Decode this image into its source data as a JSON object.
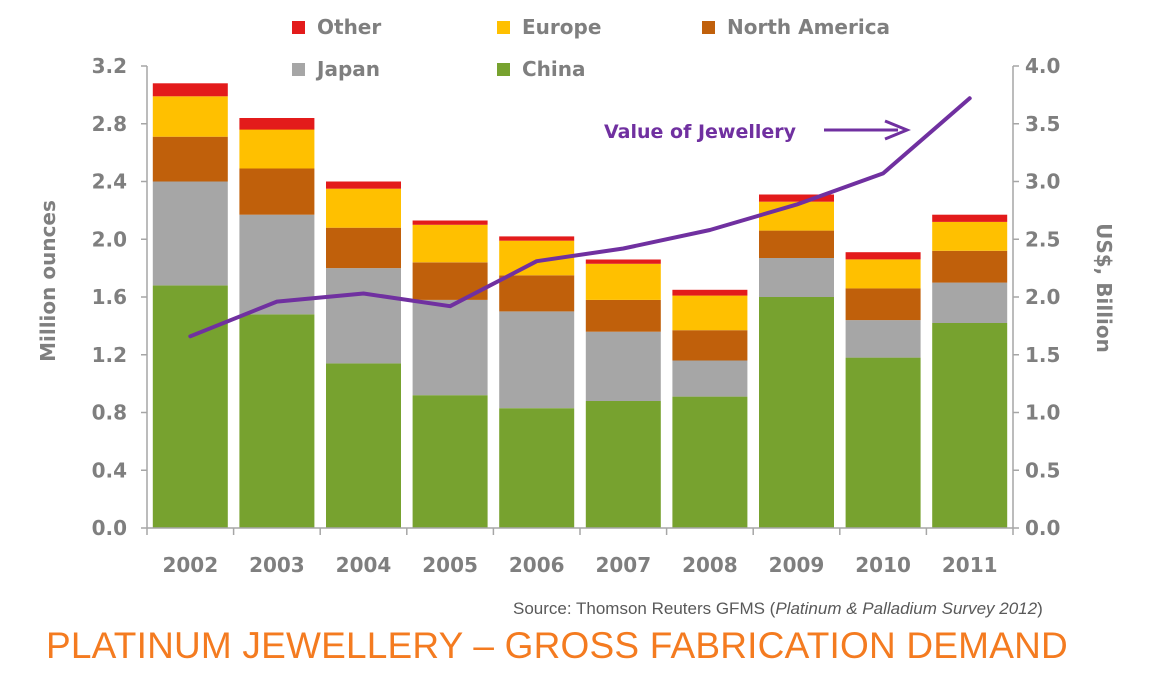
{
  "chart_data": {
    "type": "bar",
    "stacked": true,
    "title": "PLATINUM JEWELLERY – GROSS FABRICATION DEMAND",
    "categories": [
      "2002",
      "2003",
      "2004",
      "2005",
      "2006",
      "2007",
      "2008",
      "2009",
      "2010",
      "2011"
    ],
    "series": [
      {
        "name": "China",
        "color": "#77a22f",
        "values": [
          1.68,
          1.48,
          1.14,
          0.92,
          0.83,
          0.88,
          0.91,
          1.6,
          1.18,
          1.42
        ]
      },
      {
        "name": "Japan",
        "color": "#a6a6a6",
        "values": [
          0.72,
          0.69,
          0.66,
          0.66,
          0.67,
          0.48,
          0.25,
          0.27,
          0.26,
          0.28
        ]
      },
      {
        "name": "North America",
        "color": "#c0600b",
        "values": [
          0.31,
          0.32,
          0.28,
          0.26,
          0.25,
          0.22,
          0.21,
          0.19,
          0.22,
          0.22
        ]
      },
      {
        "name": "Europe",
        "color": "#ffc000",
        "values": [
          0.28,
          0.27,
          0.27,
          0.26,
          0.24,
          0.25,
          0.24,
          0.2,
          0.2,
          0.2
        ]
      },
      {
        "name": "Other",
        "color": "#e31b1b",
        "values": [
          0.09,
          0.08,
          0.05,
          0.03,
          0.03,
          0.03,
          0.04,
          0.05,
          0.05,
          0.05
        ]
      }
    ],
    "line_series": {
      "name": "Value of Jewellery",
      "color": "#7030a0",
      "axis": "right",
      "values": [
        1.66,
        1.96,
        2.03,
        1.92,
        2.31,
        2.42,
        2.58,
        2.8,
        3.07,
        3.72
      ]
    },
    "ylabel": "Million ounces",
    "ylim": [
      0,
      3.2
    ],
    "yticks": [
      "0.0",
      "0.4",
      "0.8",
      "1.2",
      "1.6",
      "2.0",
      "2.4",
      "2.8",
      "3.2"
    ],
    "y2label": "US$, Billion",
    "y2lim": [
      0,
      4.0
    ],
    "y2ticks": [
      "0.0",
      "0.5",
      "1.0",
      "1.5",
      "2.0",
      "2.5",
      "3.0",
      "3.5",
      "4.0"
    ],
    "legend": {
      "placement": "top",
      "entries": [
        {
          "name": "Other",
          "color": "#e31b1b"
        },
        {
          "name": "Europe",
          "color": "#ffc000"
        },
        {
          "name": "North America",
          "color": "#c0600b"
        },
        {
          "name": "Japan",
          "color": "#a6a6a6"
        },
        {
          "name": "China",
          "color": "#77a22f"
        }
      ]
    },
    "annotation": "Value of Jewellery",
    "grid": false
  },
  "source": {
    "prefix": "Source: Thomson Reuters GFMS (",
    "italic": "Platinum & Palladium Survey 2012",
    "suffix": ")"
  }
}
